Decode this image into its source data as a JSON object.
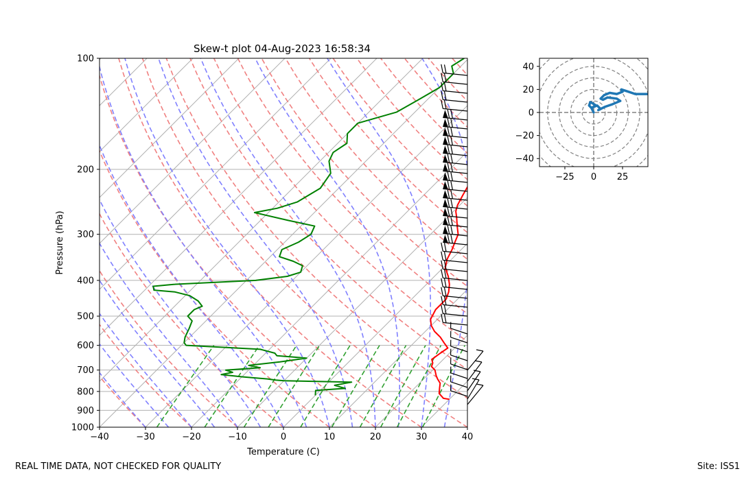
{
  "footer": {
    "left": "REAL TIME DATA, NOT CHECKED FOR QUALITY",
    "right": "Site: ISS1"
  },
  "colors": {
    "temperature": "#ff0000",
    "dewpoint": "#008000",
    "dry_adiabat": "#f08080",
    "moist_adiabat": "#8080ff",
    "mixing_ratio": "#30a030",
    "isotherm": "#b0b0b0",
    "hodograph": "#1f77b4"
  },
  "chart_data": [
    {
      "type": "line",
      "subtype": "skew-t",
      "title": "Skew-t plot 04-Aug-2023 16:58:34",
      "xlabel": "Temperature (C)",
      "ylabel": "Pressure (hPa)",
      "xlim": [
        -40,
        40
      ],
      "ylim": [
        1000,
        100
      ],
      "y_scale": "log",
      "x_ticks": [
        "−40",
        "−30",
        "−20",
        "−10",
        "0",
        "10",
        "20",
        "30",
        "40"
      ],
      "y_ticks": [
        "100",
        "200",
        "300",
        "400",
        "500",
        "600",
        "700",
        "800",
        "900",
        "1000"
      ],
      "grid": true,
      "series": [
        {
          "kind": "temperature",
          "points": [
            [
              30,
              840
            ],
            [
              28.5,
              835
            ],
            [
              26.5,
              810
            ],
            [
              25.5,
              785
            ],
            [
              24.5,
              760
            ],
            [
              23,
              740
            ],
            [
              22,
              725
            ],
            [
              20.5,
              700
            ],
            [
              19,
              685
            ],
            [
              18.5,
              670
            ],
            [
              17.5,
              655
            ],
            [
              18,
              630
            ],
            [
              18.5,
              610
            ],
            [
              16.5,
              590
            ],
            [
              14.5,
              570
            ],
            [
              12,
              550
            ],
            [
              10,
              530
            ],
            [
              8.5,
              510
            ],
            [
              7.5,
              480
            ],
            [
              7.5,
              450
            ],
            [
              6.5,
              430
            ],
            [
              5,
              410
            ],
            [
              3,
              390
            ],
            [
              0.5,
              370
            ],
            [
              -1,
              350
            ],
            [
              -2,
              330
            ],
            [
              -3,
              315
            ],
            [
              -4,
              300
            ],
            [
              -6,
              285
            ],
            [
              -8,
              270
            ],
            [
              -9.5,
              260
            ],
            [
              -10.5,
              250
            ],
            [
              -11.5,
              235
            ],
            [
              -12.5,
              220
            ],
            [
              -13.5,
              205
            ],
            [
              -15,
              195
            ],
            [
              -16.5,
              185
            ],
            [
              -17.5,
              172
            ],
            [
              -17.8,
              160
            ],
            [
              -19.5,
              150
            ],
            [
              -21,
              140
            ],
            [
              -22,
              130
            ],
            [
              -23,
              122
            ],
            [
              -24,
              115
            ],
            [
              -24.5,
              108
            ],
            [
              -25,
              104
            ],
            [
              -24.8,
              100
            ]
          ]
        },
        {
          "kind": "dewpoint",
          "points": [
            [
              0,
              820
            ],
            [
              -1,
              795
            ],
            [
              5,
              785
            ],
            [
              2,
              770
            ],
            [
              5,
              755
            ],
            [
              -10,
              748
            ],
            [
              -12,
              745
            ],
            [
              -14,
              740
            ],
            [
              -20,
              730
            ],
            [
              -25,
              720
            ],
            [
              -23,
              710
            ],
            [
              -25,
              700
            ],
            [
              -18,
              690
            ],
            [
              -21,
              680
            ],
            [
              -15,
              665
            ],
            [
              -10,
              650
            ],
            [
              -17,
              640
            ],
            [
              -18,
              630
            ],
            [
              -22,
              615
            ],
            [
              -39,
              600
            ],
            [
              -40,
              590
            ],
            [
              -41,
              570
            ],
            [
              -42,
              540
            ],
            [
              -43,
              515
            ],
            [
              -45,
              500
            ],
            [
              -45,
              480
            ],
            [
              -44,
              470
            ],
            [
              -46,
              455
            ],
            [
              -49,
              440
            ],
            [
              -53,
              430
            ],
            [
              -58,
              425
            ],
            [
              -59,
              415
            ],
            [
              -55,
              410
            ],
            [
              -38,
              400
            ],
            [
              -32,
              390
            ],
            [
              -30,
              380
            ],
            [
              -31,
              365
            ],
            [
              -34,
              355
            ],
            [
              -38,
              345
            ],
            [
              -39,
              330
            ],
            [
              -37,
              315
            ],
            [
              -36,
              300
            ],
            [
              -37,
              285
            ],
            [
              -44,
              275
            ],
            [
              -53,
              262
            ],
            [
              -49,
              255
            ],
            [
              -46,
              245
            ],
            [
              -44,
              225
            ],
            [
              -45,
              205
            ],
            [
              -48,
              190
            ],
            [
              -49,
              180
            ],
            [
              -48,
              170
            ],
            [
              -50,
              160
            ],
            [
              -50,
              150
            ],
            [
              -44,
              140
            ],
            [
              -42,
              130
            ],
            [
              -40,
              120
            ],
            [
              -40,
              110
            ],
            [
              -42,
              105
            ],
            [
              -41,
              100
            ]
          ]
        }
      ],
      "wind_barbs": true
    },
    {
      "type": "line",
      "subtype": "hodograph",
      "xlim": [
        -47,
        47
      ],
      "ylim": [
        -47,
        47
      ],
      "x_ticks": [
        "−25",
        "0",
        "25"
      ],
      "y_ticks": [
        "40",
        "20",
        "0",
        "−20",
        "−40"
      ],
      "rings": [
        10,
        20,
        30,
        40,
        50,
        60
      ],
      "series": [
        {
          "kind": "wind",
          "points": [
            [
              0,
              0
            ],
            [
              -2,
              4
            ],
            [
              -4,
              6
            ],
            [
              -3,
              9
            ],
            [
              -1,
              8
            ],
            [
              2,
              6
            ],
            [
              -2,
              4
            ],
            [
              3,
              6
            ],
            [
              6,
              3
            ],
            [
              4,
              2
            ],
            [
              10,
              5
            ],
            [
              16,
              7
            ],
            [
              23,
              10
            ],
            [
              20,
              12
            ],
            [
              12,
              13
            ],
            [
              8,
              11
            ],
            [
              6,
              12
            ],
            [
              9,
              15
            ],
            [
              14,
              17
            ],
            [
              20,
              16
            ],
            [
              25,
              18
            ],
            [
              24,
              20
            ],
            [
              30,
              18
            ],
            [
              36,
              16
            ],
            [
              42,
              16
            ],
            [
              47,
              16
            ]
          ]
        }
      ]
    }
  ]
}
